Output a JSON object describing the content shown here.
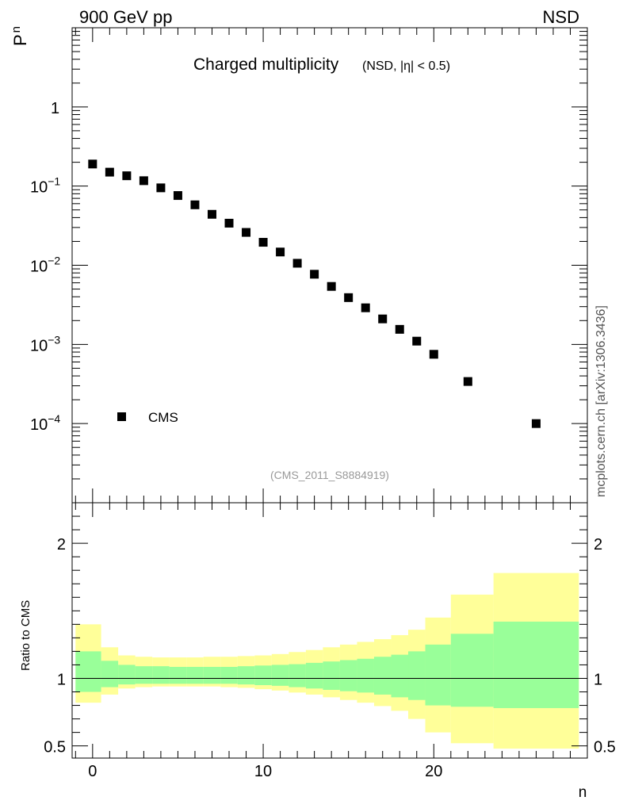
{
  "header": {
    "left": "900 GeV pp",
    "right": "NSD"
  },
  "watermark": "mcplots.cern.ch [arXiv:1306.3436]",
  "chart_data": [
    {
      "type": "scatter",
      "title": "Charged multiplicity",
      "subtitle": "(NSD, |η| < 0.5)",
      "ylabel_main": "P",
      "ylabel_sub": "n",
      "yscale": "log",
      "xlim": [
        -1.2,
        29
      ],
      "ylim": [
        1e-05,
        10
      ],
      "y_tick_labels": [
        {
          "value": 1,
          "base": "1",
          "exp": ""
        },
        {
          "value": 0.1,
          "base": "10",
          "exp": "−1"
        },
        {
          "value": 0.01,
          "base": "10",
          "exp": "−2"
        },
        {
          "value": 0.001,
          "base": "10",
          "exp": "−3"
        },
        {
          "value": 0.0001,
          "base": "10",
          "exp": "−4"
        }
      ],
      "legend": {
        "label": "CMS",
        "position": "bottom-left"
      },
      "annotation": "(CMS_2011_S8884919)",
      "series": [
        {
          "name": "CMS",
          "marker": "square",
          "color": "#000000",
          "x": [
            0,
            1,
            2,
            3,
            4,
            5,
            6,
            7,
            8,
            9,
            10,
            11,
            12,
            13,
            14,
            15,
            16,
            17,
            18,
            19,
            20,
            22,
            26
          ],
          "y": [
            0.19,
            0.15,
            0.135,
            0.117,
            0.095,
            0.076,
            0.058,
            0.044,
            0.034,
            0.026,
            0.0195,
            0.0147,
            0.0106,
            0.0077,
            0.0054,
            0.0039,
            0.0029,
            0.0021,
            0.00155,
            0.0011,
            0.00075,
            0.00034,
            0.0001
          ]
        }
      ]
    },
    {
      "type": "area",
      "ylabel": "Ratio to CMS",
      "xlabel": "n",
      "xlim": [
        -1.2,
        29
      ],
      "ylim": [
        0.41,
        2.3
      ],
      "x_tick_labels": [
        "0",
        "10",
        "20"
      ],
      "y_tick_labels": [
        "0.5",
        "1",
        "2"
      ],
      "reference_line": 1,
      "bands": [
        {
          "name": "outer",
          "color": "#ffff99",
          "bins": [
            -1,
            0.5,
            1.5,
            2.5,
            3.5,
            4.5,
            5.5,
            6.5,
            7.5,
            8.5,
            9.5,
            10.5,
            11.5,
            12.5,
            13.5,
            14.5,
            15.5,
            16.5,
            17.5,
            18.5,
            19.5,
            21,
            23.5,
            28.5
          ],
          "upper": [
            1.4,
            1.23,
            1.17,
            1.16,
            1.155,
            1.155,
            1.155,
            1.16,
            1.16,
            1.165,
            1.17,
            1.18,
            1.195,
            1.21,
            1.23,
            1.25,
            1.27,
            1.29,
            1.32,
            1.36,
            1.45,
            1.62,
            1.78
          ],
          "lower": [
            0.82,
            0.88,
            0.925,
            0.935,
            0.94,
            0.94,
            0.94,
            0.94,
            0.935,
            0.93,
            0.92,
            0.91,
            0.895,
            0.88,
            0.86,
            0.84,
            0.82,
            0.795,
            0.76,
            0.7,
            0.6,
            0.52,
            0.48
          ]
        },
        {
          "name": "inner",
          "color": "#99ff99",
          "bins": [
            -1,
            0.5,
            1.5,
            2.5,
            3.5,
            4.5,
            5.5,
            6.5,
            7.5,
            8.5,
            9.5,
            10.5,
            11.5,
            12.5,
            13.5,
            14.5,
            15.5,
            16.5,
            17.5,
            18.5,
            19.5,
            21,
            23.5,
            28.5
          ],
          "upper": [
            1.2,
            1.13,
            1.1,
            1.09,
            1.09,
            1.085,
            1.085,
            1.085,
            1.085,
            1.09,
            1.095,
            1.1,
            1.105,
            1.115,
            1.125,
            1.135,
            1.145,
            1.16,
            1.175,
            1.2,
            1.25,
            1.33,
            1.42
          ],
          "lower": [
            0.9,
            0.935,
            0.955,
            0.96,
            0.96,
            0.96,
            0.96,
            0.96,
            0.96,
            0.955,
            0.95,
            0.945,
            0.935,
            0.925,
            0.915,
            0.905,
            0.895,
            0.88,
            0.86,
            0.84,
            0.8,
            0.79,
            0.78
          ]
        }
      ]
    }
  ]
}
